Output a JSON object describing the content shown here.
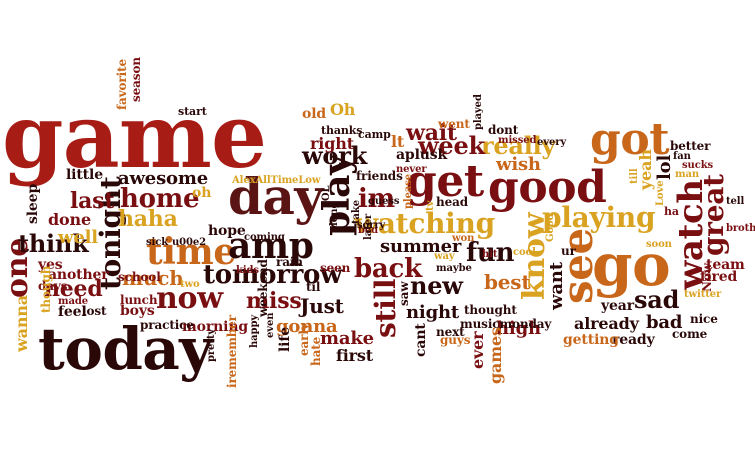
{
  "palette": {
    "darkred": "#7a0f12",
    "red": "#a81c16",
    "brown": "#5a1414",
    "nearblack": "#2a0808",
    "orange": "#c8661a",
    "gold": "#d9a321",
    "maroon": "#8e1c2a"
  },
  "words": [
    {
      "t": "game",
      "c": "red"
    },
    {
      "t": "today",
      "c": "nearblack"
    },
    {
      "t": "day",
      "c": "brown"
    },
    {
      "t": "good",
      "c": "darkred"
    },
    {
      "t": "go",
      "c": "orange"
    },
    {
      "t": "got",
      "c": "orange"
    },
    {
      "t": "get",
      "c": "darkred"
    },
    {
      "t": "time",
      "c": "orange"
    },
    {
      "t": "amp",
      "c": "nearblack"
    },
    {
      "t": "tomorrow",
      "c": "nearblack"
    },
    {
      "t": "now",
      "c": "darkred"
    },
    {
      "t": "one",
      "c": "darkred"
    },
    {
      "t": "tonight",
      "c": "nearblack"
    },
    {
      "t": "play",
      "c": "nearblack"
    },
    {
      "t": "watching",
      "c": "gold"
    },
    {
      "t": "playing",
      "c": "gold"
    },
    {
      "t": "back",
      "c": "darkred"
    },
    {
      "t": "see",
      "c": "orange"
    },
    {
      "t": "know",
      "c": "gold"
    },
    {
      "t": "watch",
      "c": "darkred"
    },
    {
      "t": "great",
      "c": "darkred"
    },
    {
      "t": "fun",
      "c": "nearblack"
    },
    {
      "t": "new",
      "c": "nearblack"
    },
    {
      "t": "still",
      "c": "darkred"
    },
    {
      "t": "home",
      "c": "darkred"
    },
    {
      "t": "last",
      "c": "darkred"
    },
    {
      "t": "work",
      "c": "nearblack"
    },
    {
      "t": "think",
      "c": "nearblack"
    },
    {
      "t": "haha",
      "c": "gold"
    },
    {
      "t": "much",
      "c": "orange"
    },
    {
      "t": "need",
      "c": "darkred"
    },
    {
      "t": "miss",
      "c": "darkred"
    },
    {
      "t": "really",
      "c": "gold"
    },
    {
      "t": "week",
      "c": "darkred"
    },
    {
      "t": "wait",
      "c": "darkred"
    },
    {
      "t": "im",
      "c": "darkred"
    },
    {
      "t": "sad",
      "c": "nearblack"
    },
    {
      "t": "want",
      "c": "nearblack"
    },
    {
      "t": "awesome",
      "c": "nearblack"
    },
    {
      "t": "Just",
      "c": "nearblack"
    },
    {
      "t": "gonna",
      "c": "orange"
    },
    {
      "t": "make",
      "c": "darkred"
    },
    {
      "t": "night",
      "c": "nearblack"
    },
    {
      "t": "best",
      "c": "orange"
    },
    {
      "t": "summer",
      "c": "nearblack"
    },
    {
      "t": "high",
      "c": "darkred"
    },
    {
      "t": "bad",
      "c": "nearblack"
    },
    {
      "t": "already",
      "c": "nearblack"
    },
    {
      "t": "wish",
      "c": "orange"
    },
    {
      "t": "lol",
      "c": "nearblack"
    },
    {
      "t": "yeah",
      "c": "gold"
    },
    {
      "t": "right",
      "c": "darkred"
    },
    {
      "t": "old",
      "c": "orange"
    },
    {
      "t": "Oh",
      "c": "gold"
    },
    {
      "t": "morning",
      "c": "darkred"
    },
    {
      "t": "first",
      "c": "nearblack"
    },
    {
      "t": "well",
      "c": "gold"
    },
    {
      "t": "done",
      "c": "darkred"
    },
    {
      "t": "little",
      "c": "nearblack"
    },
    {
      "t": "sleep",
      "c": "nearblack"
    },
    {
      "t": "yes",
      "c": "darkred"
    },
    {
      "t": "another",
      "c": "darkred"
    },
    {
      "t": "days",
      "c": "darkred"
    },
    {
      "t": "feel",
      "c": "nearblack"
    },
    {
      "t": "lost",
      "c": "nearblack"
    },
    {
      "t": "wanna",
      "c": "gold"
    },
    {
      "t": "though",
      "c": "gold"
    },
    {
      "t": "made",
      "c": "darkred"
    },
    {
      "t": "oh",
      "c": "gold"
    },
    {
      "t": "AlexAllTimeLow",
      "c": "gold"
    },
    {
      "t": "LOL",
      "c": "nearblack"
    },
    {
      "t": "friends",
      "c": "nearblack"
    },
    {
      "t": "thanks",
      "c": "nearblack"
    },
    {
      "t": "camp",
      "c": "nearblack"
    },
    {
      "t": "lt",
      "c": "orange"
    },
    {
      "t": "aplusk",
      "c": "nearblack"
    },
    {
      "t": "never",
      "c": "darkred"
    },
    {
      "t": "head",
      "c": "nearblack"
    },
    {
      "t": "went",
      "c": "orange"
    },
    {
      "t": "dont",
      "c": "nearblack"
    },
    {
      "t": "played",
      "c": "nearblack"
    },
    {
      "t": "missed",
      "c": "darkred"
    },
    {
      "t": "every",
      "c": "nearblack"
    },
    {
      "t": "better",
      "c": "nearblack"
    },
    {
      "t": "fan",
      "c": "nearblack"
    },
    {
      "t": "sucks",
      "c": "darkred"
    },
    {
      "t": "man",
      "c": "gold"
    },
    {
      "t": "till",
      "c": "gold"
    },
    {
      "t": "Love",
      "c": "gold"
    },
    {
      "t": "ha",
      "c": "darkred"
    },
    {
      "t": "tell",
      "c": "nearblack"
    },
    {
      "t": "brother",
      "c": "darkred"
    },
    {
      "t": "team",
      "c": "darkred"
    },
    {
      "t": "tired",
      "c": "darkred"
    },
    {
      "t": "Now",
      "c": "darkred"
    },
    {
      "t": "nice",
      "c": "nearblack"
    },
    {
      "t": "come",
      "c": "nearblack"
    },
    {
      "t": "ready",
      "c": "nearblack"
    },
    {
      "t": "getting",
      "c": "orange"
    },
    {
      "t": "year",
      "c": "nearblack"
    },
    {
      "t": "soon",
      "c": "gold"
    },
    {
      "t": "twitter",
      "c": "gold"
    },
    {
      "t": "ur",
      "c": "nearblack"
    },
    {
      "t": "Good",
      "c": "gold"
    },
    {
      "t": "cool",
      "c": "gold"
    },
    {
      "t": "hit",
      "c": "darkred"
    },
    {
      "t": "won",
      "c": "orange"
    },
    {
      "t": "way",
      "c": "gold"
    },
    {
      "t": "maybe",
      "c": "nearblack"
    },
    {
      "t": "thought",
      "c": "nearblack"
    },
    {
      "t": "musicmonday",
      "c": "nearblack"
    },
    {
      "t": "next",
      "c": "nearblack"
    },
    {
      "t": "guys",
      "c": "orange"
    },
    {
      "t": "games",
      "c": "orange"
    },
    {
      "t": "ever",
      "c": "darkred"
    },
    {
      "t": "cant",
      "c": "nearblack"
    },
    {
      "t": "saw",
      "c": "nearblack"
    },
    {
      "t": "guess",
      "c": "nearblack"
    },
    {
      "t": "please",
      "c": "orange"
    },
    {
      "t": "tv",
      "c": "gold"
    },
    {
      "t": "bed",
      "c": "darkred"
    },
    {
      "t": "later",
      "c": "nearblack"
    },
    {
      "t": "sorry",
      "c": "nearblack"
    },
    {
      "t": "take",
      "c": "nearblack"
    },
    {
      "t": "long",
      "c": "nearblack"
    },
    {
      "t": "seen",
      "c": "darkred"
    },
    {
      "t": "rain",
      "c": "nearblack"
    },
    {
      "t": "til",
      "c": "nearblack"
    },
    {
      "t": "early",
      "c": "orange"
    },
    {
      "t": "hate",
      "c": "orange"
    },
    {
      "t": "life",
      "c": "nearblack"
    },
    {
      "t": "even",
      "c": "nearblack"
    },
    {
      "t": "weekend",
      "c": "nearblack"
    },
    {
      "t": "happy",
      "c": "nearblack"
    },
    {
      "t": "iremember",
      "c": "orange"
    },
    {
      "t": "coming",
      "c": "nearblack"
    },
    {
      "t": "pretty",
      "c": "nearblack"
    },
    {
      "t": "kids",
      "c": "darkred"
    },
    {
      "t": "two",
      "c": "gold"
    },
    {
      "t": "hope",
      "c": "nearblack"
    },
    {
      "t": "practice",
      "c": "nearblack"
    },
    {
      "t": "boys",
      "c": "darkred"
    },
    {
      "t": "lunch",
      "c": "darkred"
    },
    {
      "t": "school",
      "c": "darkred"
    },
    {
      "t": "sick",
      "c": "nearblack"
    },
    {
      "t": "u00e2",
      "c": "nearblack"
    },
    {
      "t": "favorite",
      "c": "orange"
    },
    {
      "t": "season",
      "c": "darkred"
    },
    {
      "t": "start",
      "c": "nearblack"
    }
  ]
}
